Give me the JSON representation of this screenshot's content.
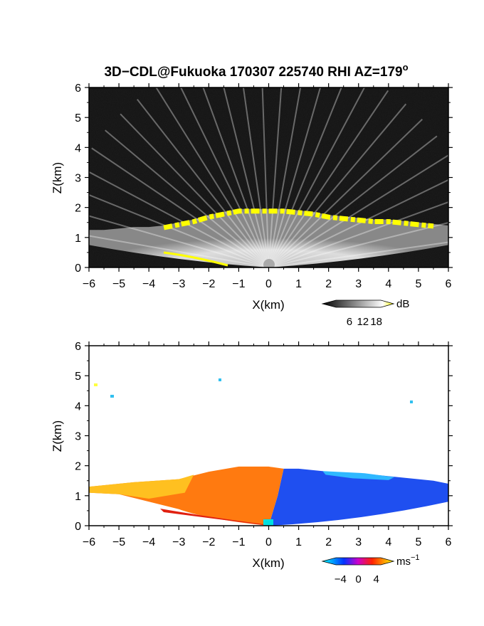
{
  "figure": {
    "title": "3D−CDL@Fukuoka 170307 225740 RHI AZ=179",
    "title_superscript": "o"
  },
  "chart_data": [
    {
      "type": "heatmap",
      "name": "reflectivity",
      "xlabel": "X(km)",
      "ylabel": "Z(km)",
      "xlim": [
        -6,
        6
      ],
      "ylim": [
        0,
        6
      ],
      "xticks": [
        "−6",
        "−5",
        "−4",
        "−3",
        "−2",
        "−1",
        "0",
        "1",
        "2",
        "3",
        "4",
        "5",
        "6"
      ],
      "yticks": [
        "0",
        "1",
        "2",
        "3",
        "4",
        "5",
        "6"
      ],
      "cloud_top_km": [
        [
          -6,
          1.25
        ],
        [
          -5.5,
          1.25
        ],
        [
          -5,
          1.3
        ],
        [
          -4.5,
          1.35
        ],
        [
          -4,
          1.35
        ],
        [
          -3.5,
          1.4
        ],
        [
          -3,
          1.5
        ],
        [
          -2.5,
          1.6
        ],
        [
          -2,
          1.75
        ],
        [
          -1.5,
          1.85
        ],
        [
          -1,
          1.95
        ],
        [
          -0.5,
          1.95
        ],
        [
          0,
          1.95
        ],
        [
          0.5,
          1.95
        ],
        [
          1,
          1.9
        ],
        [
          1.5,
          1.85
        ],
        [
          2,
          1.75
        ],
        [
          2.5,
          1.7
        ],
        [
          3,
          1.65
        ],
        [
          3.5,
          1.6
        ],
        [
          4,
          1.6
        ],
        [
          4.5,
          1.55
        ],
        [
          5,
          1.5
        ],
        [
          5.5,
          1.45
        ],
        [
          6,
          1.4
        ]
      ],
      "colorbar": {
        "unit": "dB",
        "ticks": [
          "6",
          "12",
          "18"
        ],
        "range": [
          0,
          20
        ]
      }
    },
    {
      "type": "heatmap",
      "name": "doppler velocity",
      "xlabel": "X(km)",
      "ylabel": "Z(km)",
      "xlim": [
        -6,
        6
      ],
      "ylim": [
        0,
        6
      ],
      "xticks": [
        "−6",
        "−5",
        "−4",
        "−3",
        "−2",
        "−1",
        "0",
        "1",
        "2",
        "3",
        "4",
        "5",
        "6"
      ],
      "yticks": [
        "0",
        "1",
        "2",
        "3",
        "4",
        "5",
        "6"
      ],
      "colorbar": {
        "unit": "ms",
        "unit_superscript": "−1",
        "ticks": [
          "−4",
          "0",
          "4"
        ],
        "range": [
          -5,
          5
        ]
      }
    }
  ]
}
